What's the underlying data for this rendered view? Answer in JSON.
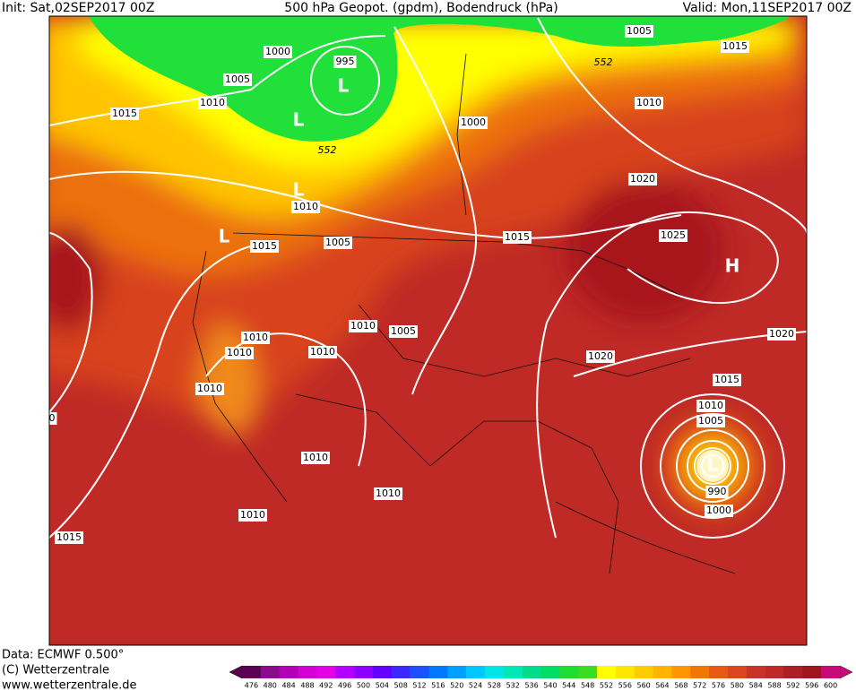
{
  "header": {
    "init": "Init: Sat,02SEP2017 00Z",
    "title": "500 hPa Geopot. (gpdm), Bodendruck (hPa)",
    "valid": "Valid: Mon,11SEP2017 00Z"
  },
  "map_labels": [
    "1005",
    "1015",
    "552",
    "1000",
    "995",
    "L",
    "1005",
    "1010",
    "1015",
    "L",
    "552",
    "1000",
    "1010",
    "1020",
    "L",
    "1010",
    "L",
    "1015",
    "1005",
    "1015",
    "1025",
    "H",
    "1010",
    "1005",
    "1010",
    "1010",
    "1010",
    "1020",
    "1020",
    "1010",
    "1015",
    "1010",
    "1005",
    "0",
    "L",
    "1010",
    "990",
    "1010",
    "1000",
    "1010",
    "1015"
  ],
  "footer": {
    "data": "Data: ECMWF  0.500°",
    "copyright": "(C) Wetterzentrale",
    "url": "www.wetterzentrale.de"
  },
  "colorbar": {
    "ticks": [
      476,
      480,
      484,
      488,
      492,
      496,
      500,
      504,
      508,
      512,
      516,
      520,
      524,
      528,
      532,
      536,
      540,
      544,
      548,
      552,
      556,
      560,
      564,
      568,
      572,
      576,
      580,
      584,
      588,
      592,
      596,
      600
    ],
    "colors": [
      "#5a0050",
      "#8b0a8b",
      "#b400b4",
      "#d200d2",
      "#e600e6",
      "#b400ff",
      "#8c00ff",
      "#6400ff",
      "#3c28ff",
      "#1e50ff",
      "#0078ff",
      "#00a0ff",
      "#00c8ff",
      "#00e6e6",
      "#00e6b4",
      "#00dc8c",
      "#00dc64",
      "#1edc32",
      "#3cdc1e",
      "#ffff00",
      "#ffe600",
      "#ffcc00",
      "#ffb400",
      "#ff9600",
      "#f07800",
      "#e65a14",
      "#dc461e",
      "#c83228",
      "#be2828",
      "#aa1e28",
      "#a0141e",
      "#c80a78"
    ]
  }
}
